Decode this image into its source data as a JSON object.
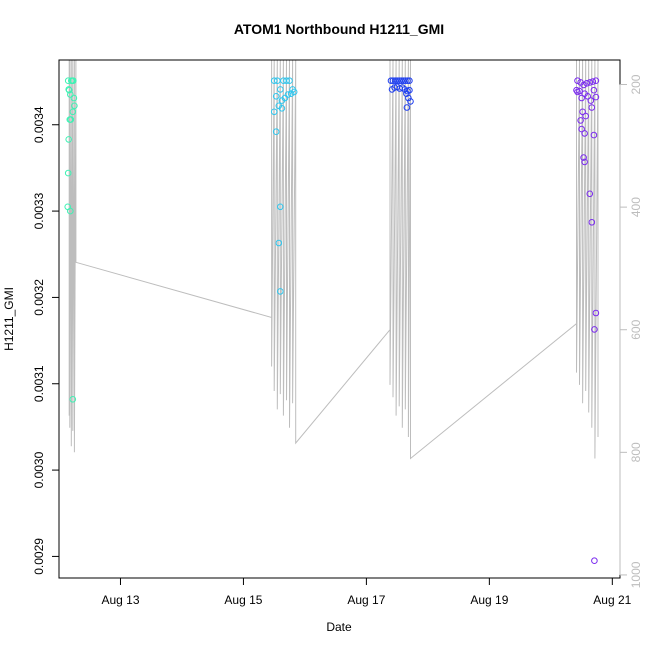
{
  "chart_data": {
    "type": "scatter",
    "title": "ATOM1 Northbound H1211_GMI",
    "xlabel": "Date",
    "ylabel": "H1211_GMI",
    "xlim": [
      "2023-08-12T00:00",
      "2023-08-21T03:00"
    ],
    "ylim": [
      0.002875,
      0.003475
    ],
    "x_ticks": [
      {
        "date": "2023-08-13",
        "label": "Aug 13"
      },
      {
        "date": "2023-08-15",
        "label": "Aug 15"
      },
      {
        "date": "2023-08-17",
        "label": "Aug 17"
      },
      {
        "date": "2023-08-19",
        "label": "Aug 19"
      },
      {
        "date": "2023-08-21",
        "label": "Aug 21"
      }
    ],
    "y_ticks": [
      {
        "value": 0.0029,
        "label": "0.0029"
      },
      {
        "value": 0.003,
        "label": "0.0030"
      },
      {
        "value": 0.0031,
        "label": "0.0031"
      },
      {
        "value": 0.0032,
        "label": "0.0032"
      },
      {
        "value": 0.0033,
        "label": "0.0033"
      },
      {
        "value": 0.0034,
        "label": "0.0034"
      }
    ],
    "secondary_axis": {
      "side": "right",
      "reversed": true,
      "range": [
        1005,
        160
      ],
      "ticks": [
        200,
        400,
        600,
        800,
        1000
      ],
      "color": "#bdbdbd",
      "profile": [
        {
          "x": "2023-08-12T04:00",
          "p": 160
        },
        {
          "x": "2023-08-12T04:00",
          "p": 740
        },
        {
          "x": "2023-08-12T04:12",
          "p": 160
        },
        {
          "x": "2023-08-12T04:12",
          "p": 760
        },
        {
          "x": "2023-08-12T04:48",
          "p": 160
        },
        {
          "x": "2023-08-12T04:48",
          "p": 790
        },
        {
          "x": "2023-08-12T05:24",
          "p": 160
        },
        {
          "x": "2023-08-12T05:24",
          "p": 765
        },
        {
          "x": "2023-08-12T06:00",
          "p": 160
        },
        {
          "x": "2023-08-12T06:00",
          "p": 800
        },
        {
          "x": "2023-08-12T06:36",
          "p": 160
        },
        {
          "x": "2023-08-12T06:36",
          "p": 490
        },
        {
          "x": "2023-08-15T11:00",
          "p": 580
        },
        {
          "x": "2023-08-15T11:00",
          "p": 160
        },
        {
          "x": "2023-08-15T11:00",
          "p": 660
        },
        {
          "x": "2023-08-15T12:00",
          "p": 160
        },
        {
          "x": "2023-08-15T12:00",
          "p": 700
        },
        {
          "x": "2023-08-15T13:12",
          "p": 160
        },
        {
          "x": "2023-08-15T13:12",
          "p": 730
        },
        {
          "x": "2023-08-15T14:24",
          "p": 160
        },
        {
          "x": "2023-08-15T14:24",
          "p": 705
        },
        {
          "x": "2023-08-15T15:36",
          "p": 160
        },
        {
          "x": "2023-08-15T15:36",
          "p": 740
        },
        {
          "x": "2023-08-15T16:48",
          "p": 160
        },
        {
          "x": "2023-08-15T16:48",
          "p": 715
        },
        {
          "x": "2023-08-15T18:00",
          "p": 160
        },
        {
          "x": "2023-08-15T18:00",
          "p": 760
        },
        {
          "x": "2023-08-15T19:12",
          "p": 160
        },
        {
          "x": "2023-08-15T19:12",
          "p": 720
        },
        {
          "x": "2023-08-15T20:24",
          "p": 160
        },
        {
          "x": "2023-08-15T20:24",
          "p": 785
        },
        {
          "x": "2023-08-17T09:12",
          "p": 600
        },
        {
          "x": "2023-08-17T09:12",
          "p": 160
        },
        {
          "x": "2023-08-17T09:12",
          "p": 690
        },
        {
          "x": "2023-08-17T10:24",
          "p": 160
        },
        {
          "x": "2023-08-17T10:24",
          "p": 710
        },
        {
          "x": "2023-08-17T11:36",
          "p": 160
        },
        {
          "x": "2023-08-17T11:36",
          "p": 740
        },
        {
          "x": "2023-08-17T12:48",
          "p": 160
        },
        {
          "x": "2023-08-17T12:48",
          "p": 725
        },
        {
          "x": "2023-08-17T14:00",
          "p": 160
        },
        {
          "x": "2023-08-17T14:00",
          "p": 760
        },
        {
          "x": "2023-08-17T15:12",
          "p": 160
        },
        {
          "x": "2023-08-17T15:12",
          "p": 730
        },
        {
          "x": "2023-08-17T16:24",
          "p": 160
        },
        {
          "x": "2023-08-17T16:24",
          "p": 775
        },
        {
          "x": "2023-08-17T17:12",
          "p": 160
        },
        {
          "x": "2023-08-17T17:12",
          "p": 810
        },
        {
          "x": "2023-08-20T10:00",
          "p": 590
        },
        {
          "x": "2023-08-20T10:00",
          "p": 160
        },
        {
          "x": "2023-08-20T10:00",
          "p": 670
        },
        {
          "x": "2023-08-20T11:12",
          "p": 160
        },
        {
          "x": "2023-08-20T11:12",
          "p": 690
        },
        {
          "x": "2023-08-20T12:24",
          "p": 160
        },
        {
          "x": "2023-08-20T12:24",
          "p": 720
        },
        {
          "x": "2023-08-20T13:36",
          "p": 160
        },
        {
          "x": "2023-08-20T13:36",
          "p": 700
        },
        {
          "x": "2023-08-20T14:48",
          "p": 160
        },
        {
          "x": "2023-08-20T14:48",
          "p": 735
        },
        {
          "x": "2023-08-20T16:00",
          "p": 160
        },
        {
          "x": "2023-08-20T16:00",
          "p": 760
        },
        {
          "x": "2023-08-20T17:12",
          "p": 160
        },
        {
          "x": "2023-08-20T17:12",
          "p": 810
        },
        {
          "x": "2023-08-20T18:24",
          "p": 160
        },
        {
          "x": "2023-08-20T18:24",
          "p": 775
        }
      ]
    },
    "grid": false,
    "color_scale": "rainbow by time (aquamarine → blue → violet)",
    "series": [
      {
        "color": "#3ef2b4",
        "points": [
          {
            "x": "2023-08-12T03:36",
            "y": 0.003451
          },
          {
            "x": "2023-08-12T03:48",
            "y": 0.003441
          },
          {
            "x": "2023-08-12T04:00",
            "y": 0.00344
          },
          {
            "x": "2023-08-12T04:24",
            "y": 0.003435
          },
          {
            "x": "2023-08-12T04:48",
            "y": 0.003451
          },
          {
            "x": "2023-08-12T05:12",
            "y": 0.003451
          },
          {
            "x": "2023-08-12T05:36",
            "y": 0.003451
          },
          {
            "x": "2023-08-12T05:48",
            "y": 0.003431
          },
          {
            "x": "2023-08-12T06:00",
            "y": 0.003422
          },
          {
            "x": "2023-08-12T05:24",
            "y": 0.003415
          },
          {
            "x": "2023-08-12T04:36",
            "y": 0.003406
          },
          {
            "x": "2023-08-12T04:12",
            "y": 0.003406
          },
          {
            "x": "2023-08-12T03:48",
            "y": 0.003383
          },
          {
            "x": "2023-08-12T03:36",
            "y": 0.003344
          },
          {
            "x": "2023-08-12T03:24",
            "y": 0.003305
          },
          {
            "x": "2023-08-12T04:24",
            "y": 0.0033
          },
          {
            "x": "2023-08-12T05:24",
            "y": 0.003082
          }
        ]
      },
      {
        "color": "#2fc7ef",
        "points": [
          {
            "x": "2023-08-15T12:00",
            "y": 0.003451
          },
          {
            "x": "2023-08-15T13:12",
            "y": 0.003451
          },
          {
            "x": "2023-08-15T14:24",
            "y": 0.003441
          },
          {
            "x": "2023-08-15T15:36",
            "y": 0.003451
          },
          {
            "x": "2023-08-15T16:48",
            "y": 0.003451
          },
          {
            "x": "2023-08-15T18:00",
            "y": 0.003451
          },
          {
            "x": "2023-08-15T19:12",
            "y": 0.003441
          },
          {
            "x": "2023-08-15T19:48",
            "y": 0.003438
          },
          {
            "x": "2023-08-15T18:36",
            "y": 0.003436
          },
          {
            "x": "2023-08-15T17:24",
            "y": 0.003435
          },
          {
            "x": "2023-08-15T16:12",
            "y": 0.003431
          },
          {
            "x": "2023-08-15T15:00",
            "y": 0.003428
          },
          {
            "x": "2023-08-15T12:48",
            "y": 0.003433
          },
          {
            "x": "2023-08-15T13:48",
            "y": 0.003422
          },
          {
            "x": "2023-08-15T15:00",
            "y": 0.003419
          },
          {
            "x": "2023-08-15T12:00",
            "y": 0.003415
          },
          {
            "x": "2023-08-15T12:48",
            "y": 0.003392
          },
          {
            "x": "2023-08-15T14:24",
            "y": 0.003305
          },
          {
            "x": "2023-08-15T13:48",
            "y": 0.003263
          },
          {
            "x": "2023-08-15T14:24",
            "y": 0.003207
          }
        ]
      },
      {
        "color": "#1f3ff0",
        "points": [
          {
            "x": "2023-08-17T09:36",
            "y": 0.003451
          },
          {
            "x": "2023-08-17T10:24",
            "y": 0.003451
          },
          {
            "x": "2023-08-17T11:12",
            "y": 0.003451
          },
          {
            "x": "2023-08-17T12:00",
            "y": 0.003451
          },
          {
            "x": "2023-08-17T12:48",
            "y": 0.003451
          },
          {
            "x": "2023-08-17T13:36",
            "y": 0.003451
          },
          {
            "x": "2023-08-17T14:24",
            "y": 0.003451
          },
          {
            "x": "2023-08-17T15:12",
            "y": 0.003451
          },
          {
            "x": "2023-08-17T16:00",
            "y": 0.003451
          },
          {
            "x": "2023-08-17T16:48",
            "y": 0.003451
          },
          {
            "x": "2023-08-17T10:00",
            "y": 0.003441
          },
          {
            "x": "2023-08-17T11:00",
            "y": 0.003443
          },
          {
            "x": "2023-08-17T12:00",
            "y": 0.003444
          },
          {
            "x": "2023-08-17T13:00",
            "y": 0.003442
          },
          {
            "x": "2023-08-17T14:00",
            "y": 0.003443
          },
          {
            "x": "2023-08-17T15:00",
            "y": 0.003441
          },
          {
            "x": "2023-08-17T16:00",
            "y": 0.003439
          },
          {
            "x": "2023-08-17T16:48",
            "y": 0.00344
          },
          {
            "x": "2023-08-17T15:36",
            "y": 0.003436
          },
          {
            "x": "2023-08-17T16:24",
            "y": 0.003431
          },
          {
            "x": "2023-08-17T17:12",
            "y": 0.003427
          },
          {
            "x": "2023-08-17T15:48",
            "y": 0.00342
          }
        ]
      },
      {
        "color": "#7b2bef",
        "points": [
          {
            "x": "2023-08-20T10:24",
            "y": 0.003451
          },
          {
            "x": "2023-08-20T11:36",
            "y": 0.003449
          },
          {
            "x": "2023-08-20T12:48",
            "y": 0.003446
          },
          {
            "x": "2023-08-20T14:00",
            "y": 0.003448
          },
          {
            "x": "2023-08-20T15:12",
            "y": 0.003449
          },
          {
            "x": "2023-08-20T16:24",
            "y": 0.00345
          },
          {
            "x": "2023-08-20T17:36",
            "y": 0.003451
          },
          {
            "x": "2023-08-20T10:00",
            "y": 0.00344
          },
          {
            "x": "2023-08-20T10:24",
            "y": 0.003438
          },
          {
            "x": "2023-08-20T11:12",
            "y": 0.003439
          },
          {
            "x": "2023-08-20T12:00",
            "y": 0.003431
          },
          {
            "x": "2023-08-20T13:12",
            "y": 0.003436
          },
          {
            "x": "2023-08-20T14:24",
            "y": 0.003433
          },
          {
            "x": "2023-08-20T15:36",
            "y": 0.003428
          },
          {
            "x": "2023-08-20T16:48",
            "y": 0.00344
          },
          {
            "x": "2023-08-20T17:36",
            "y": 0.003432
          },
          {
            "x": "2023-08-20T16:00",
            "y": 0.00342
          },
          {
            "x": "2023-08-20T12:24",
            "y": 0.003415
          },
          {
            "x": "2023-08-20T13:36",
            "y": 0.00341
          },
          {
            "x": "2023-08-20T11:36",
            "y": 0.003405
          },
          {
            "x": "2023-08-20T12:00",
            "y": 0.003395
          },
          {
            "x": "2023-08-20T13:12",
            "y": 0.00339
          },
          {
            "x": "2023-08-20T16:48",
            "y": 0.003388
          },
          {
            "x": "2023-08-20T12:48",
            "y": 0.003362
          },
          {
            "x": "2023-08-20T13:12",
            "y": 0.003357
          },
          {
            "x": "2023-08-20T15:12",
            "y": 0.00332
          },
          {
            "x": "2023-08-20T16:00",
            "y": 0.003287
          },
          {
            "x": "2023-08-20T17:36",
            "y": 0.003182
          },
          {
            "x": "2023-08-20T17:00",
            "y": 0.003163
          },
          {
            "x": "2023-08-20T17:00",
            "y": 0.002895
          }
        ]
      }
    ]
  }
}
